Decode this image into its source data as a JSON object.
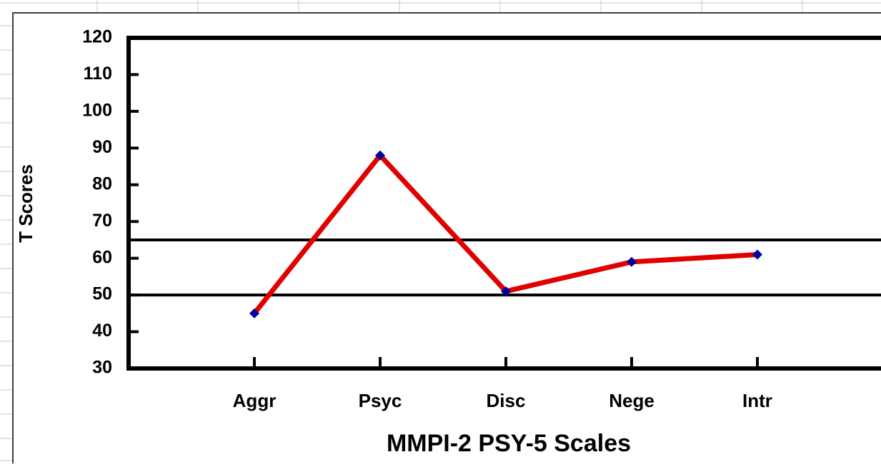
{
  "chart_data": {
    "type": "line",
    "x_label": "MMPI-2 PSY-5 Scales",
    "y_label": "T Scores",
    "categories": [
      "Aggr",
      "Psyc",
      "Disc",
      "Nege",
      "Intr"
    ],
    "series": [
      {
        "color": "#e00000",
        "marker_color": "#000099",
        "values": [
          45,
          88,
          51,
          59,
          61
        ]
      }
    ],
    "ylim": [
      30,
      120
    ],
    "yticks": [
      30,
      40,
      50,
      60,
      70,
      80,
      90,
      100,
      110,
      120
    ],
    "reference_lines": [
      50,
      65
    ]
  }
}
